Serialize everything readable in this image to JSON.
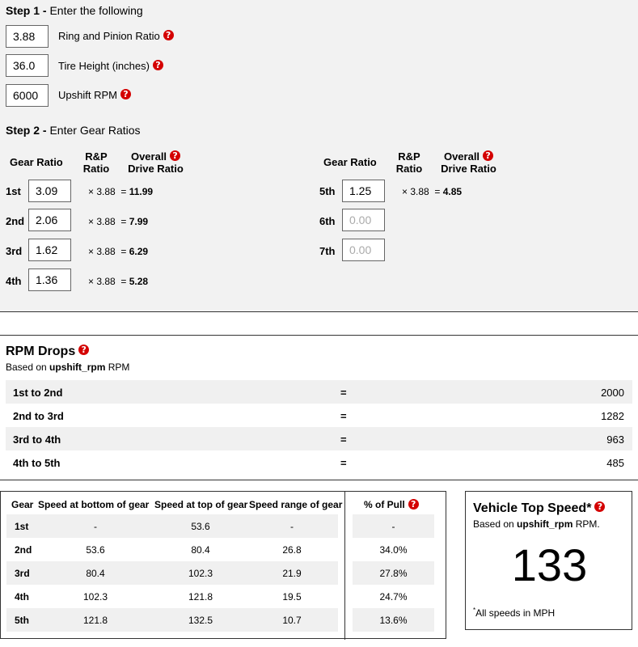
{
  "step1": {
    "title_bold": "Step 1 -",
    "title_rest": " Enter the following",
    "fields": [
      {
        "value": "3.88",
        "label": "Ring and Pinion Ratio"
      },
      {
        "value": "36.0",
        "label": "Tire Height (inches)"
      },
      {
        "value": "6000",
        "label": "Upshift RPM"
      }
    ]
  },
  "step2": {
    "title_bold": "Step 2 -",
    "title_rest": " Enter Gear Ratios",
    "headers": {
      "gear_ratio": "Gear Ratio",
      "rp_line1": "R&P",
      "rp_line2": "Ratio",
      "overall_line1": "Overall",
      "overall_line2": "Drive Ratio"
    },
    "gears": [
      {
        "name": "1st",
        "ratio": "3.09",
        "calc": "× 3.88  =",
        "overall": "11.99"
      },
      {
        "name": "2nd",
        "ratio": "2.06",
        "calc": "× 3.88  =",
        "overall": "7.99"
      },
      {
        "name": "3rd",
        "ratio": "1.62",
        "calc": "× 3.88  =",
        "overall": "6.29"
      },
      {
        "name": "4th",
        "ratio": "1.36",
        "calc": "× 3.88  =",
        "overall": "5.28"
      },
      {
        "name": "5th",
        "ratio": "1.25",
        "calc": "× 3.88  =",
        "overall": "4.85"
      },
      {
        "name": "6th",
        "ratio": "0.00"
      },
      {
        "name": "7th",
        "ratio": "0.00"
      }
    ]
  },
  "help_glyph": "?",
  "rpm_drops": {
    "title": "RPM Drops",
    "based_pre": "Based on ",
    "based_var": "upshift_rpm",
    "based_post": " RPM",
    "eq": "=",
    "rows": [
      {
        "label": "1st to 2nd",
        "value": "2000"
      },
      {
        "label": "2nd to 3rd",
        "value": "1282"
      },
      {
        "label": "3rd to 4th",
        "value": "963"
      },
      {
        "label": "4th to 5th",
        "value": "485"
      }
    ]
  },
  "speed_table": {
    "headers": [
      "Gear",
      "Speed at bottom of gear",
      "Speed at top of gear",
      "Speed range of gear",
      "% of Pull"
    ],
    "rows": [
      {
        "gear": "1st",
        "bottom": "-",
        "top": "53.6",
        "range": "-",
        "pull": "-"
      },
      {
        "gear": "2nd",
        "bottom": "53.6",
        "top": "80.4",
        "range": "26.8",
        "pull": "34.0%"
      },
      {
        "gear": "3rd",
        "bottom": "80.4",
        "top": "102.3",
        "range": "21.9",
        "pull": "27.8%"
      },
      {
        "gear": "4th",
        "bottom": "102.3",
        "top": "121.8",
        "range": "19.5",
        "pull": "24.7%"
      },
      {
        "gear": "5th",
        "bottom": "121.8",
        "top": "132.5",
        "range": "10.7",
        "pull": "13.6%"
      }
    ]
  },
  "top_speed": {
    "title": "Vehicle Top Speed*",
    "based_pre": "Based on ",
    "based_var": "upshift_rpm",
    "based_post": " RPM.",
    "value": "133",
    "footnote_mark": "*",
    "footnote": "All speeds in MPH"
  }
}
